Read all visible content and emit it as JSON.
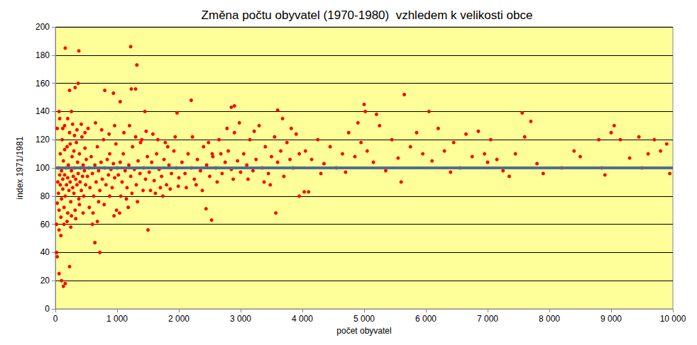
{
  "chart_data": {
    "type": "scatter",
    "title": "Změna počtu obyvatel (1970-1980)  vzhledem k velikosti obce",
    "x_label": "počet obyvatel",
    "y_label": "index 1971/1981",
    "xlim": [
      0,
      10000
    ],
    "xticks": [
      0,
      {
        "value": 1000,
        "label": "1 000"
      },
      {
        "value": 2000,
        "label": "2 000"
      },
      {
        "value": 3000,
        "label": "3 000"
      },
      {
        "value": 4000,
        "label": "4 000"
      },
      {
        "value": 5000,
        "label": "5 000"
      },
      {
        "value": 6000,
        "label": "6 000"
      },
      {
        "value": 7000,
        "label": "7 000"
      },
      {
        "value": 8000,
        "label": "8 000"
      },
      {
        "value": 9000,
        "label": "9 000"
      },
      {
        "value": 10000,
        "label": "10 000"
      }
    ],
    "ylim": [
      0,
      200
    ],
    "yticks": [
      0,
      20,
      40,
      60,
      80,
      100,
      120,
      140,
      160,
      180,
      200
    ],
    "grid": "y",
    "series": [
      {
        "type": "scatter",
        "color": "#ff0000",
        "marker": "circle",
        "x": [
          20,
          30,
          60,
          100,
          130,
          160,
          230,
          160,
          380,
          1220,
          1320,
          230,
          320,
          370,
          1300,
          1230,
          800,
          940,
          1050,
          260,
          1450,
          60,
          640,
          720,
          1500,
          2440,
          2530,
          3570,
          2200,
          1970,
          2850,
          2900,
          5000,
          5650,
          6050,
          7560,
          3600,
          3950,
          4030,
          4100,
          2540,
          20,
          30,
          40,
          50,
          50,
          60,
          70,
          80,
          80,
          90,
          100,
          100,
          110,
          120,
          120,
          130,
          140,
          150,
          150,
          160,
          170,
          180,
          190,
          200,
          200,
          210,
          220,
          230,
          240,
          250,
          260,
          270,
          280,
          290,
          300,
          300,
          310,
          320,
          330,
          340,
          350,
          360,
          370,
          380,
          390,
          400,
          410,
          420,
          430,
          440,
          450,
          460,
          470,
          480,
          490,
          500,
          60,
          90,
          140,
          190,
          250,
          330,
          120,
          200,
          280,
          350,
          420,
          480,
          30,
          70,
          150,
          240,
          310,
          390,
          450,
          260,
          520,
          540,
          560,
          580,
          600,
          620,
          640,
          660,
          680,
          700,
          720,
          740,
          760,
          780,
          800,
          820,
          840,
          860,
          880,
          900,
          920,
          940,
          960,
          980,
          1000,
          550,
          610,
          700,
          790,
          880,
          950,
          990,
          530,
          650,
          750,
          870,
          960,
          600,
          680,
          1020,
          1050,
          1080,
          1100,
          1130,
          1160,
          1190,
          1220,
          1250,
          1280,
          1310,
          1340,
          1370,
          1400,
          1430,
          1460,
          1490,
          1060,
          1150,
          1240,
          1330,
          1420,
          1110,
          1200,
          1300,
          1380,
          1470,
          1040,
          1180,
          1520,
          1560,
          1600,
          1640,
          1680,
          1720,
          1760,
          1800,
          1840,
          1880,
          1920,
          1960,
          2000,
          1540,
          1620,
          1700,
          1780,
          1860,
          1940,
          1580,
          1660,
          1740,
          1820,
          1990,
          2050,
          2100,
          2150,
          2200,
          2250,
          2300,
          2350,
          2400,
          2450,
          2500,
          2550,
          2600,
          2650,
          2700,
          2750,
          2800,
          2850,
          2900,
          2950,
          3000,
          2120,
          2280,
          2380,
          2480,
          2620,
          2780,
          2880,
          2980,
          2220,
          2680,
          3050,
          3100,
          3150,
          3200,
          3250,
          3300,
          3350,
          3400,
          3450,
          3500,
          3550,
          3600,
          3650,
          3700,
          3750,
          3800,
          3850,
          3900,
          3950,
          3120,
          3380,
          3680,
          3820,
          3220,
          3480,
          4050,
          4150,
          4250,
          4350,
          4450,
          4550,
          4650,
          4750,
          4850,
          4950,
          5050,
          5150,
          5250,
          5350,
          5450,
          5550,
          5750,
          5850,
          5950,
          4300,
          4700,
          5200,
          5600,
          4900,
          5020,
          6100,
          6200,
          6300,
          6450,
          6550,
          6650,
          6750,
          6850,
          6950,
          7050,
          7150,
          7250,
          7350,
          7450,
          7600,
          7700,
          7800,
          7900,
          6400,
          7000,
          8200,
          8400,
          8500,
          8800,
          8900,
          9000,
          9050,
          9150,
          9300,
          9450,
          9600,
          9700,
          9800,
          9900,
          9950,
          8850,
          9500
        ],
        "values": [
          40,
          37,
          25,
          20,
          16,
          18,
          30,
          185,
          183,
          186,
          173,
          155,
          157,
          160,
          156,
          156,
          155,
          153,
          147,
          140,
          140,
          140,
          47,
          40,
          56,
          71,
          63,
          68,
          148,
          139,
          143,
          144,
          145,
          152,
          140,
          139,
          141,
          80,
          83,
          83,
          110,
          60,
          75,
          90,
          100,
          82,
          70,
          95,
          110,
          88,
          65,
          78,
          98,
          120,
          85,
          92,
          105,
          72,
          95,
          130,
          80,
          100,
          88,
          115,
          68,
          93,
          102,
          84,
          125,
          90,
          76,
          98,
          108,
          86,
          94,
          112,
          82,
          100,
          70,
          92,
          118,
          88,
          104,
          96,
          78,
          110,
          90,
          100,
          84,
          122,
          94,
          102,
          80,
          98,
          114,
          88,
          106,
          56,
          52,
          60,
          62,
          58,
          64,
          128,
          135,
          131,
          127,
          131,
          125,
          128,
          135,
          113,
          117,
          123,
          74,
          68,
          66,
          94,
          100,
          86,
          108,
          96,
          80,
          102,
          90,
          115,
          98,
          84,
          104,
          92,
          120,
          100,
          88,
          106,
          95,
          110,
          99,
          86,
          103,
          93,
          117,
          100,
          72,
          68,
          76,
          74,
          80,
          66,
          70,
          128,
          132,
          127,
          124,
          130,
          60,
          62,
          95,
          104,
          90,
          110,
          98,
          86,
          102,
          94,
          115,
          99,
          88,
          105,
          96,
          120,
          100,
          92,
          108,
          80,
          78,
          82,
          76,
          84,
          125,
          130,
          122,
          118,
          126,
          68,
          72,
          97,
          104,
          91,
          110,
          99,
          94,
          106,
          88,
          102,
          96,
          112,
          100,
          93,
          84,
          82,
          86,
          118,
          85,
          122,
          124,
          120,
          80,
          115,
          87,
          104,
          96,
          110,
          100,
          92,
          106,
          98,
          115,
          102,
          94,
          108,
          100,
          120,
          96,
          104,
          112,
          99,
          125,
          105,
          97,
          86,
          88,
          84,
          118,
          90,
          128,
          92,
          132,
          122,
          110,
          110,
          102,
          120,
          98,
          106,
          130,
          100,
          115,
          96,
          108,
          122,
          104,
          112,
          94,
          118,
          106,
          100,
          124,
          110,
          92,
          90,
          135,
          128,
          126,
          88,
          112,
          106,
          120,
          103,
          115,
          100,
          110,
          125,
          108,
          118,
          112,
          104,
          130,
          98,
          120,
          107,
          115,
          125,
          110,
          96,
          97,
          138,
          90,
          132,
          140,
          105,
          128,
          112,
          118,
          100,
          124,
          108,
          126,
          110,
          120,
          106,
          98,
          94,
          110,
          122,
          133,
          103,
          96,
          97,
          104,
          100,
          112,
          108,
          120,
          95,
          125,
          130,
          120,
          107,
          122,
          110,
          120,
          112,
          117,
          96,
          100,
          100
        ]
      },
      {
        "type": "line",
        "color": "#4f6f8f",
        "line_style": "solid",
        "x": [
          0,
          10000
        ],
        "values": [
          100,
          100
        ]
      }
    ]
  }
}
